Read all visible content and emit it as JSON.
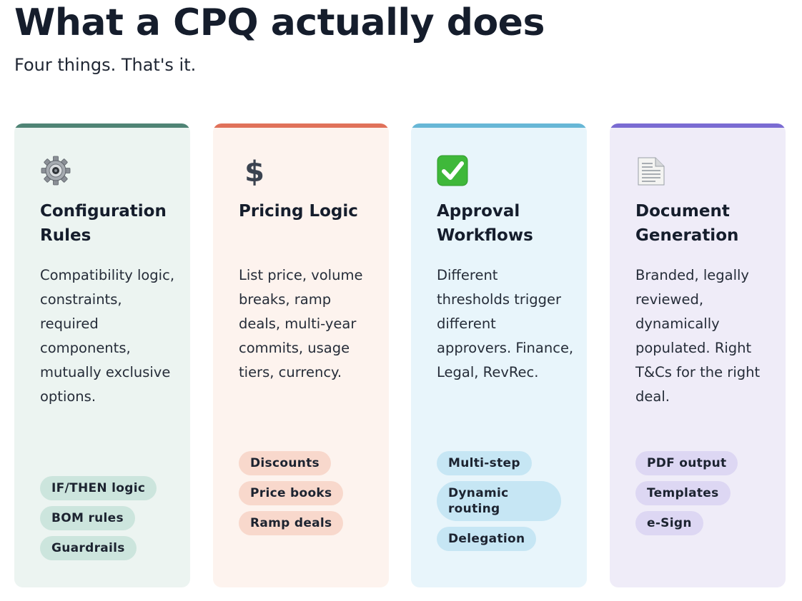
{
  "header": {
    "title": "What a CPQ actually does",
    "subtitle": "Four things. That's it."
  },
  "cards": [
    {
      "icon": "gear-icon",
      "title": "Configuration Rules",
      "body": "Compatibility logic, constraints, required components, mutually exclusive options.",
      "tags": [
        "IF/THEN logic",
        "BOM rules",
        "Guardrails"
      ],
      "accent": "#4f8475"
    },
    {
      "icon": "dollar-icon",
      "title": "Pricing Logic",
      "body": "List price, volume breaks, ramp deals, multi-year commits, usage tiers, currency.",
      "tags": [
        "Discounts",
        "Price books",
        "Ramp deals"
      ],
      "accent": "#e0715a"
    },
    {
      "icon": "check-mark-icon",
      "title": "Approval Workflows",
      "body": "Different thresholds trigger different approvers. Finance, Legal, RevRec.",
      "tags": [
        "Multi-step",
        "Dynamic routing",
        "Delegation"
      ],
      "accent": "#67b7d6"
    },
    {
      "icon": "document-icon",
      "title": "Document Generation",
      "body": "Branded, legally reviewed, dynamically populated. Right T&Cs for the right deal.",
      "tags": [
        "PDF output",
        "Templates",
        "e-Sign"
      ],
      "accent": "#7a6bd2"
    }
  ]
}
